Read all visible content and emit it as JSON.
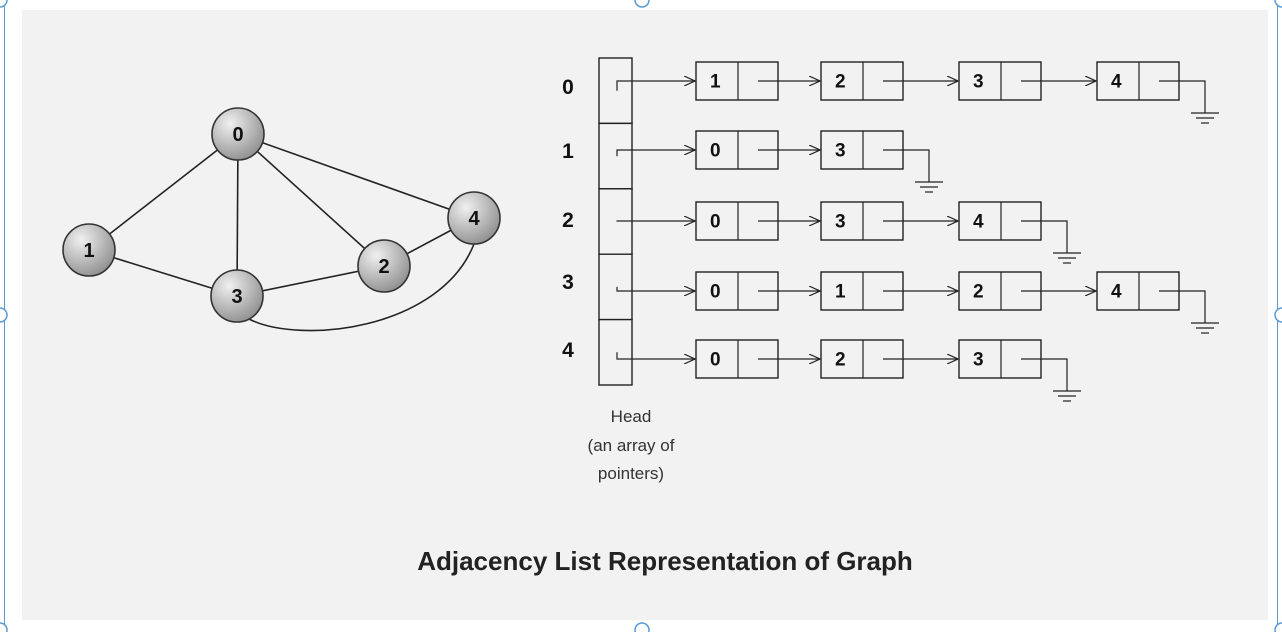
{
  "title": "Adjacency List Representation of Graph",
  "head_caption": [
    "Head",
    "(an array of",
    "pointers)"
  ],
  "graph": {
    "nodes": [
      {
        "id": "0",
        "label": "0"
      },
      {
        "id": "1",
        "label": "1"
      },
      {
        "id": "2",
        "label": "2"
      },
      {
        "id": "3",
        "label": "3"
      },
      {
        "id": "4",
        "label": "4"
      }
    ],
    "edges": [
      [
        "0",
        "1"
      ],
      [
        "0",
        "3"
      ],
      [
        "0",
        "2"
      ],
      [
        "0",
        "4"
      ],
      [
        "1",
        "3"
      ],
      [
        "3",
        "2"
      ],
      [
        "2",
        "4"
      ],
      [
        "3",
        "4"
      ]
    ]
  },
  "adjacency": [
    {
      "index": "0",
      "list": [
        "1",
        "2",
        "3",
        "4"
      ]
    },
    {
      "index": "1",
      "list": [
        "0",
        "3"
      ]
    },
    {
      "index": "2",
      "list": [
        "0",
        "3",
        "4"
      ]
    },
    {
      "index": "3",
      "list": [
        "0",
        "1",
        "2",
        "4"
      ]
    },
    {
      "index": "4",
      "list": [
        "0",
        "2",
        "3"
      ]
    }
  ],
  "colors": {
    "background": "#f2f2f2",
    "frame": "#5b9bd5",
    "node_fill_light": "#e6e6e6",
    "node_fill_dark": "#9a9a9a",
    "line": "#222222"
  }
}
